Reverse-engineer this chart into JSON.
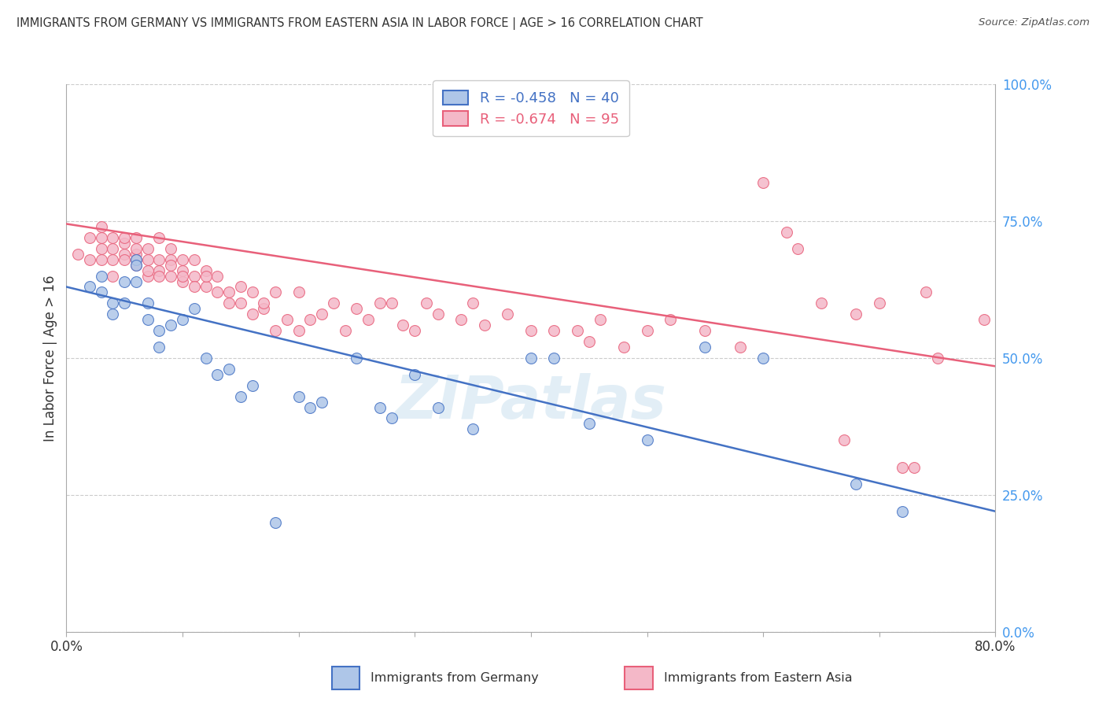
{
  "title": "IMMIGRANTS FROM GERMANY VS IMMIGRANTS FROM EASTERN ASIA IN LABOR FORCE | AGE > 16 CORRELATION CHART",
  "source": "Source: ZipAtlas.com",
  "ylabel": "In Labor Force | Age > 16",
  "ytick_labels": [
    "0.0%",
    "25.0%",
    "50.0%",
    "75.0%",
    "100.0%"
  ],
  "ytick_values": [
    0.0,
    0.25,
    0.5,
    0.75,
    1.0
  ],
  "xlim": [
    0.0,
    0.8
  ],
  "ylim": [
    0.0,
    1.0
  ],
  "germany_color": "#aec6e8",
  "germany_color_line": "#4472c4",
  "eastern_asia_color": "#f4b8c8",
  "eastern_asia_color_line": "#e8607a",
  "germany_R": -0.458,
  "germany_N": 40,
  "eastern_asia_R": -0.674,
  "eastern_asia_N": 95,
  "watermark": "ZIPatlas",
  "background_color": "#ffffff",
  "grid_color": "#cccccc",
  "germany_scatter_x": [
    0.02,
    0.03,
    0.03,
    0.04,
    0.04,
    0.05,
    0.05,
    0.06,
    0.06,
    0.06,
    0.07,
    0.07,
    0.08,
    0.08,
    0.09,
    0.1,
    0.11,
    0.12,
    0.13,
    0.14,
    0.15,
    0.16,
    0.18,
    0.2,
    0.21,
    0.22,
    0.25,
    0.27,
    0.28,
    0.3,
    0.32,
    0.35,
    0.4,
    0.42,
    0.45,
    0.5,
    0.55,
    0.6,
    0.68,
    0.72
  ],
  "germany_scatter_y": [
    0.63,
    0.65,
    0.62,
    0.58,
    0.6,
    0.64,
    0.6,
    0.68,
    0.67,
    0.64,
    0.57,
    0.6,
    0.55,
    0.52,
    0.56,
    0.57,
    0.59,
    0.5,
    0.47,
    0.48,
    0.43,
    0.45,
    0.2,
    0.43,
    0.41,
    0.42,
    0.5,
    0.41,
    0.39,
    0.47,
    0.41,
    0.37,
    0.5,
    0.5,
    0.38,
    0.35,
    0.52,
    0.5,
    0.27,
    0.22
  ],
  "eastern_asia_scatter_x": [
    0.01,
    0.02,
    0.02,
    0.03,
    0.03,
    0.03,
    0.03,
    0.04,
    0.04,
    0.04,
    0.04,
    0.05,
    0.05,
    0.05,
    0.05,
    0.06,
    0.06,
    0.06,
    0.06,
    0.06,
    0.07,
    0.07,
    0.07,
    0.07,
    0.08,
    0.08,
    0.08,
    0.08,
    0.09,
    0.09,
    0.09,
    0.09,
    0.1,
    0.1,
    0.1,
    0.1,
    0.11,
    0.11,
    0.11,
    0.12,
    0.12,
    0.12,
    0.13,
    0.13,
    0.14,
    0.14,
    0.15,
    0.15,
    0.16,
    0.16,
    0.17,
    0.17,
    0.18,
    0.18,
    0.19,
    0.2,
    0.2,
    0.21,
    0.22,
    0.23,
    0.24,
    0.25,
    0.26,
    0.27,
    0.28,
    0.29,
    0.3,
    0.31,
    0.32,
    0.34,
    0.35,
    0.36,
    0.38,
    0.4,
    0.42,
    0.44,
    0.45,
    0.46,
    0.48,
    0.5,
    0.52,
    0.55,
    0.58,
    0.6,
    0.62,
    0.63,
    0.65,
    0.67,
    0.68,
    0.7,
    0.72,
    0.73,
    0.74,
    0.75,
    0.79
  ],
  "eastern_asia_scatter_y": [
    0.69,
    0.72,
    0.68,
    0.72,
    0.7,
    0.68,
    0.74,
    0.65,
    0.7,
    0.68,
    0.72,
    0.71,
    0.69,
    0.68,
    0.72,
    0.67,
    0.69,
    0.7,
    0.72,
    0.68,
    0.65,
    0.68,
    0.7,
    0.66,
    0.66,
    0.68,
    0.72,
    0.65,
    0.68,
    0.7,
    0.65,
    0.67,
    0.64,
    0.66,
    0.68,
    0.65,
    0.65,
    0.63,
    0.68,
    0.66,
    0.63,
    0.65,
    0.62,
    0.65,
    0.6,
    0.62,
    0.6,
    0.63,
    0.58,
    0.62,
    0.59,
    0.6,
    0.55,
    0.62,
    0.57,
    0.55,
    0.62,
    0.57,
    0.58,
    0.6,
    0.55,
    0.59,
    0.57,
    0.6,
    0.6,
    0.56,
    0.55,
    0.6,
    0.58,
    0.57,
    0.6,
    0.56,
    0.58,
    0.55,
    0.55,
    0.55,
    0.53,
    0.57,
    0.52,
    0.55,
    0.57,
    0.55,
    0.52,
    0.82,
    0.73,
    0.7,
    0.6,
    0.35,
    0.58,
    0.6,
    0.3,
    0.3,
    0.62,
    0.5,
    0.57
  ],
  "germany_line_x": [
    0.0,
    0.8
  ],
  "germany_line_y": [
    0.63,
    0.22
  ],
  "eastern_asia_line_x": [
    0.0,
    0.8
  ],
  "eastern_asia_line_y": [
    0.745,
    0.485
  ]
}
